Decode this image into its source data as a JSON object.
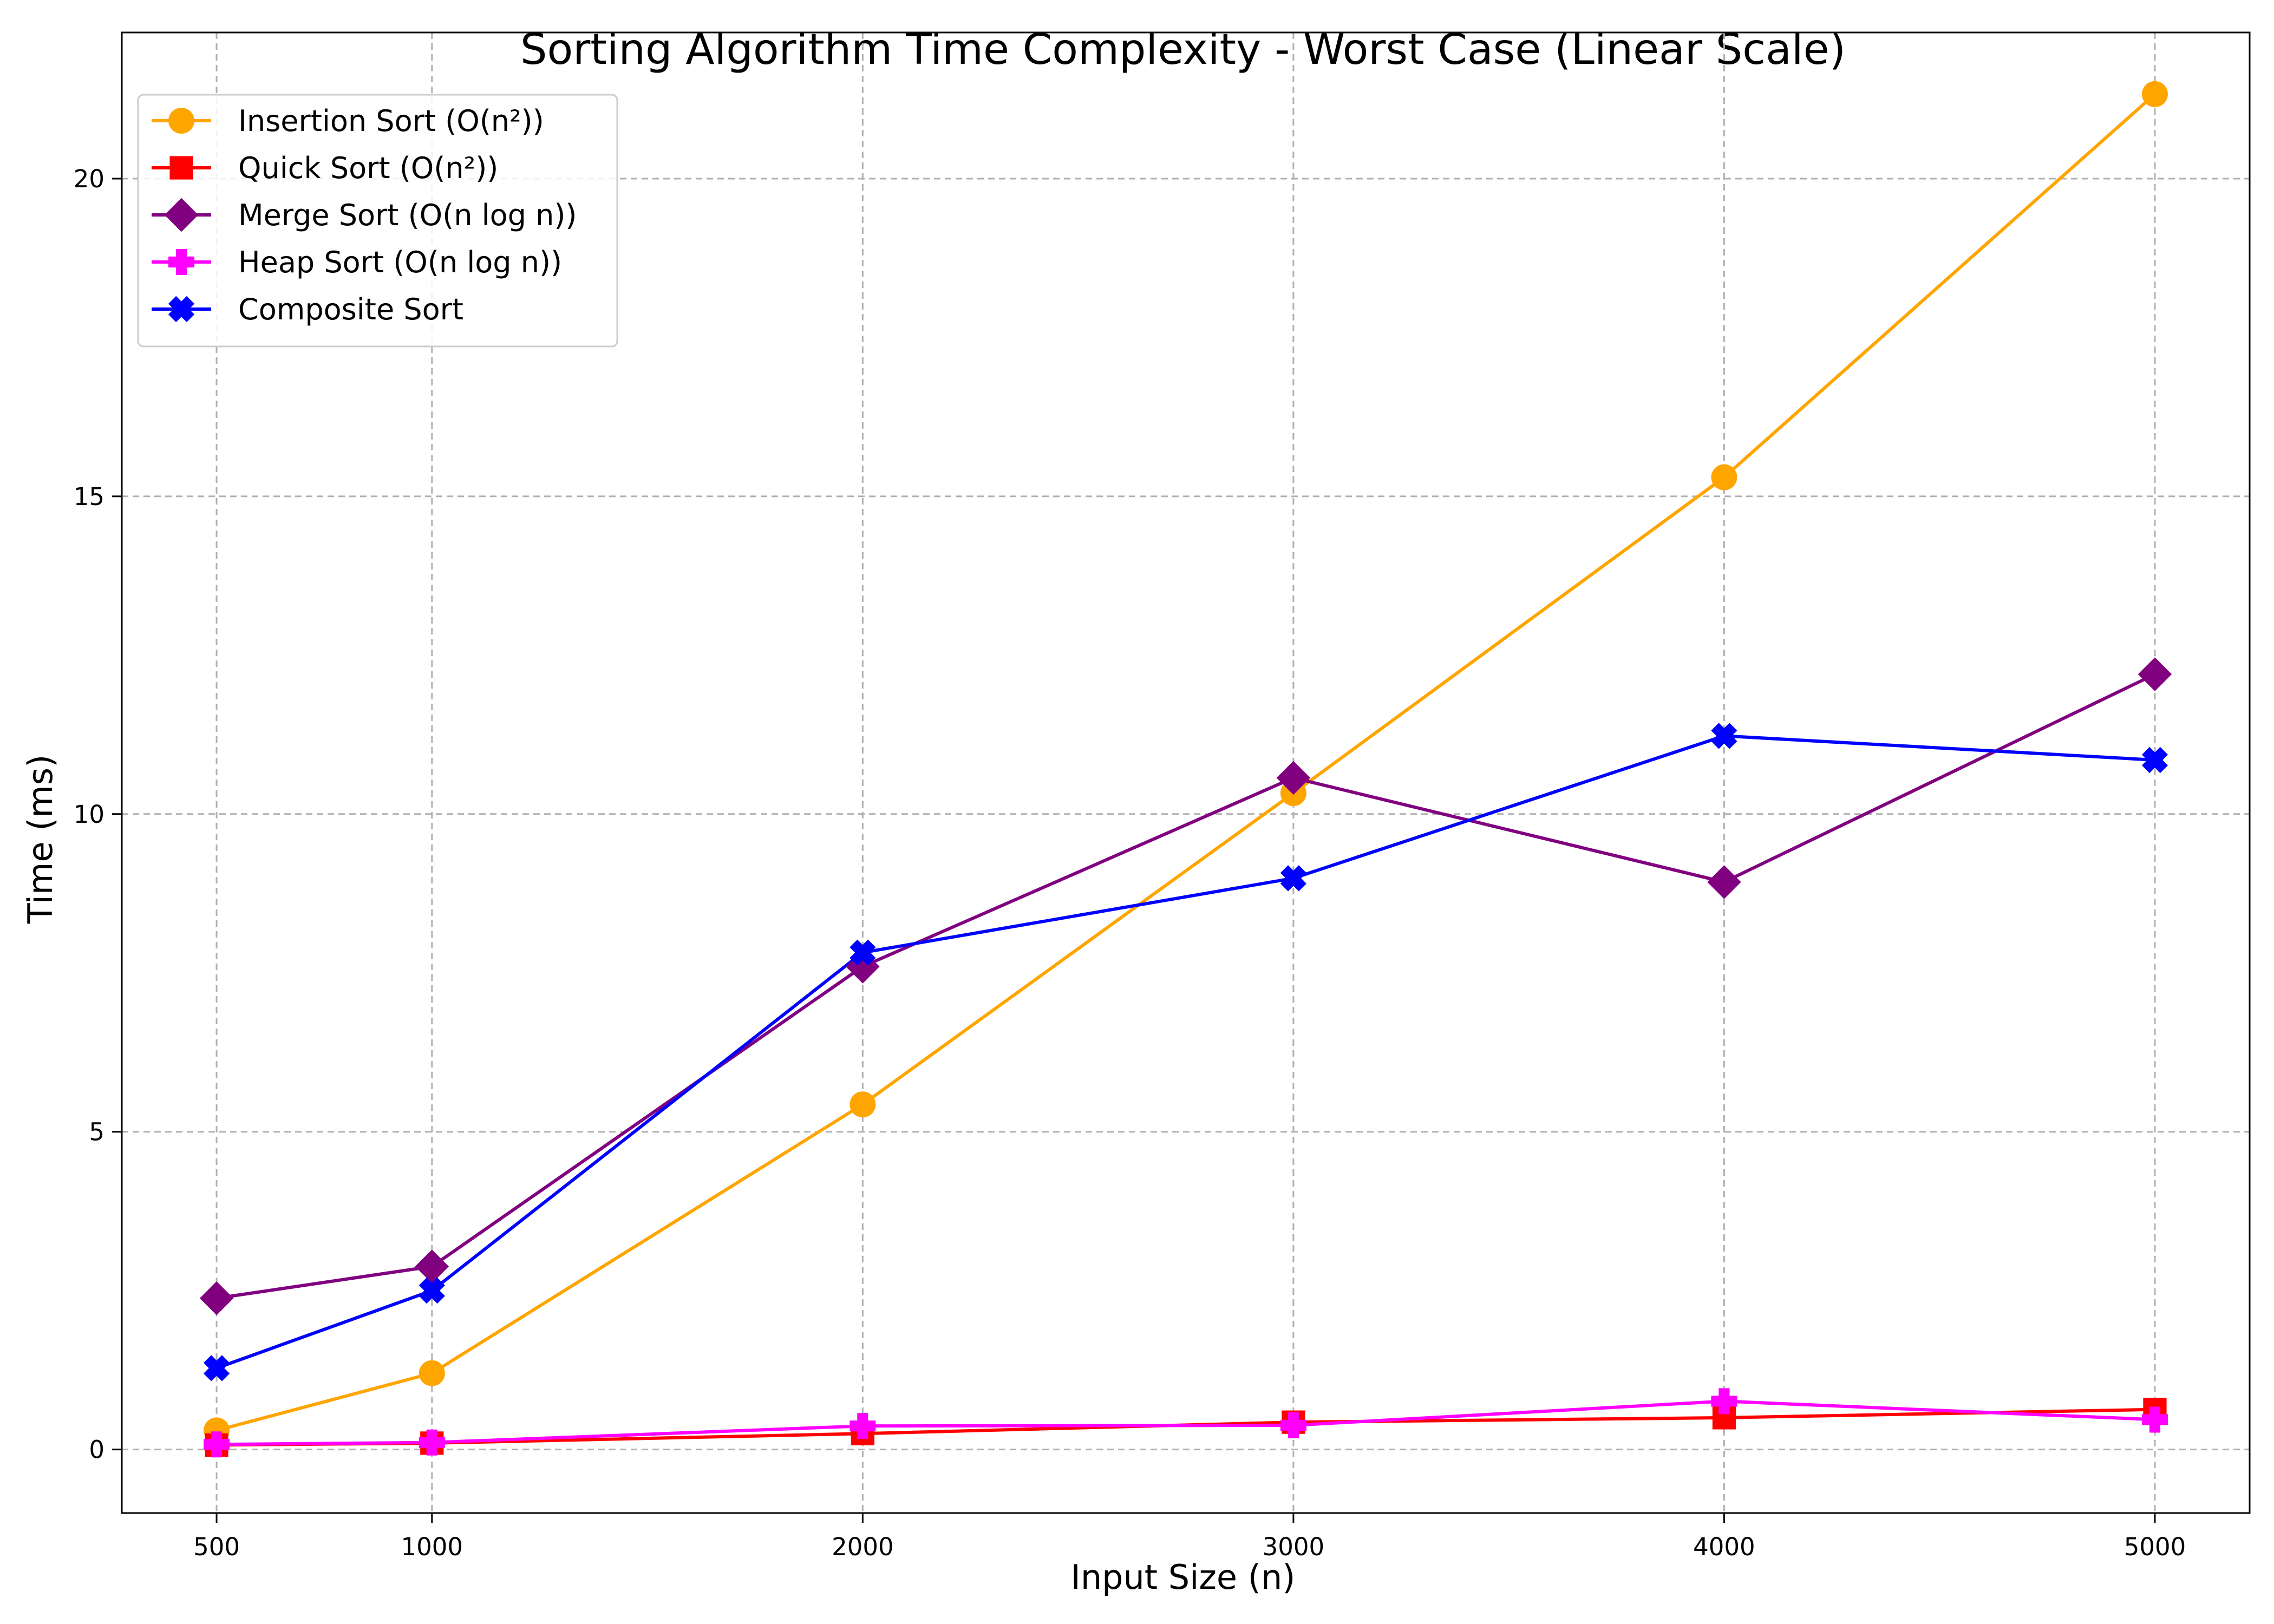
{
  "chart_data": {
    "type": "line",
    "title": "Sorting Algorithm Time Complexity - Worst Case (Linear Scale)",
    "xlabel": "Input Size (n)",
    "ylabel": "Time (ms)",
    "x": [
      500,
      1000,
      2000,
      3000,
      4000,
      5000
    ],
    "x_ticks": [
      "500",
      "1000",
      "2000",
      "3000",
      "4000",
      "5000"
    ],
    "y_ticks": [
      "0",
      "5",
      "10",
      "15",
      "20"
    ],
    "xlim": [
      280,
      5220
    ],
    "ylim": [
      -1.0,
      22.3
    ],
    "grid": true,
    "legend_position": "top-left",
    "series": [
      {
        "name": "Insertion Sort (O(n²))",
        "color": "#ffa500",
        "marker": "circle",
        "values": [
          0.3,
          1.2,
          5.43,
          10.33,
          15.3,
          21.33
        ]
      },
      {
        "name": "Quick Sort (O(n²))",
        "color": "#ff0000",
        "marker": "square",
        "values": [
          0.07,
          0.1,
          0.25,
          0.43,
          0.5,
          0.63
        ]
      },
      {
        "name": "Merge Sort (O(n log n))",
        "color": "#800080",
        "marker": "diamond",
        "values": [
          2.38,
          2.88,
          7.6,
          10.57,
          8.93,
          12.2
        ]
      },
      {
        "name": "Heap Sort (O(n log n))",
        "color": "#ff00ff",
        "marker": "plus",
        "values": [
          0.08,
          0.11,
          0.37,
          0.38,
          0.76,
          0.47
        ]
      },
      {
        "name": "Composite Sort",
        "color": "#0000ff",
        "marker": "x",
        "values": [
          1.28,
          2.5,
          7.82,
          8.99,
          11.23,
          10.85
        ]
      }
    ]
  }
}
